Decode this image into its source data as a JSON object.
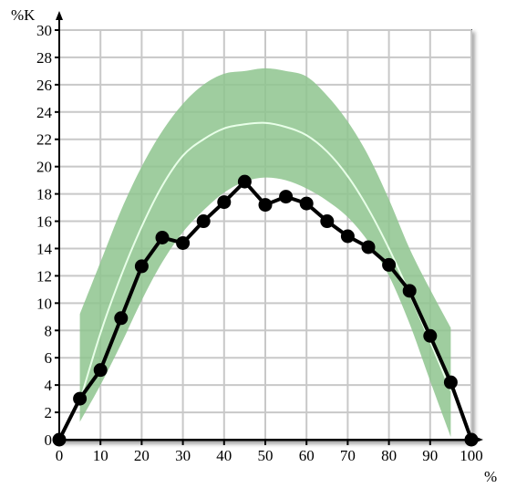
{
  "chart_data": {
    "type": "line",
    "title": "",
    "xlabel": "",
    "ylabel": "",
    "x_unit_label": "%",
    "y_unit_label": "%K",
    "xlim": [
      0,
      100
    ],
    "ylim": [
      0,
      30
    ],
    "x_ticks": [
      0,
      10,
      20,
      30,
      40,
      50,
      60,
      70,
      80,
      90,
      100
    ],
    "x_tick_labels": [
      "0",
      "10",
      "20",
      "30",
      "40",
      "50",
      "60",
      "70",
      "80",
      "90",
      "100"
    ],
    "y_ticks": [
      0,
      2,
      4,
      6,
      8,
      10,
      12,
      14,
      16,
      18,
      20,
      22,
      24,
      26,
      28,
      30
    ],
    "y_tick_labels": [
      "0",
      "2",
      "4",
      "6",
      "8",
      "10",
      "12",
      "14",
      "16",
      "18",
      "20",
      "22",
      "24",
      "26",
      "28",
      "30"
    ],
    "grid": true,
    "legend": false,
    "series": [
      {
        "x": [
          0,
          5,
          10,
          15,
          20,
          25,
          30,
          35,
          40,
          45,
          50,
          55,
          60,
          65,
          70,
          75,
          80,
          85,
          90,
          95,
          100
        ],
        "y": [
          0,
          3.0,
          5.1,
          8.9,
          12.7,
          14.8,
          14.4,
          16.0,
          17.4,
          18.9,
          17.2,
          17.8,
          17.3,
          16.0,
          14.9,
          14.1,
          12.8,
          10.9,
          7.6,
          4.2,
          0
        ],
        "color": "#000000",
        "marker": "circle"
      }
    ],
    "band": {
      "x": [
        5,
        10,
        15,
        20,
        25,
        30,
        35,
        40,
        45,
        50,
        55,
        60,
        65,
        70,
        75,
        80,
        85,
        90,
        95
      ],
      "upper": [
        9.2,
        13.0,
        16.8,
        20.0,
        22.6,
        24.6,
        26.0,
        26.8,
        27.0,
        27.2,
        27.0,
        26.6,
        25.2,
        23.3,
        20.8,
        17.6,
        14.0,
        11.0,
        8.2
      ],
      "lower": [
        1.3,
        4.0,
        7.0,
        10.2,
        13.0,
        15.2,
        16.8,
        18.1,
        18.9,
        19.2,
        19.0,
        18.4,
        17.5,
        16.3,
        14.5,
        12.0,
        8.5,
        4.3,
        0.2
      ],
      "center": [
        2.8,
        7.8,
        12.0,
        15.6,
        18.6,
        20.8,
        22.0,
        22.8,
        23.1,
        23.2,
        22.9,
        22.3,
        21.1,
        19.3,
        16.9,
        14.0,
        10.7,
        7.2,
        3.6
      ],
      "fill_color": "#8ec48e",
      "center_color": "#e8ffe8"
    },
    "colors": {
      "grid": "#c8c8c8",
      "plot_border": "#555555",
      "plot_background": "#ffffff"
    }
  }
}
